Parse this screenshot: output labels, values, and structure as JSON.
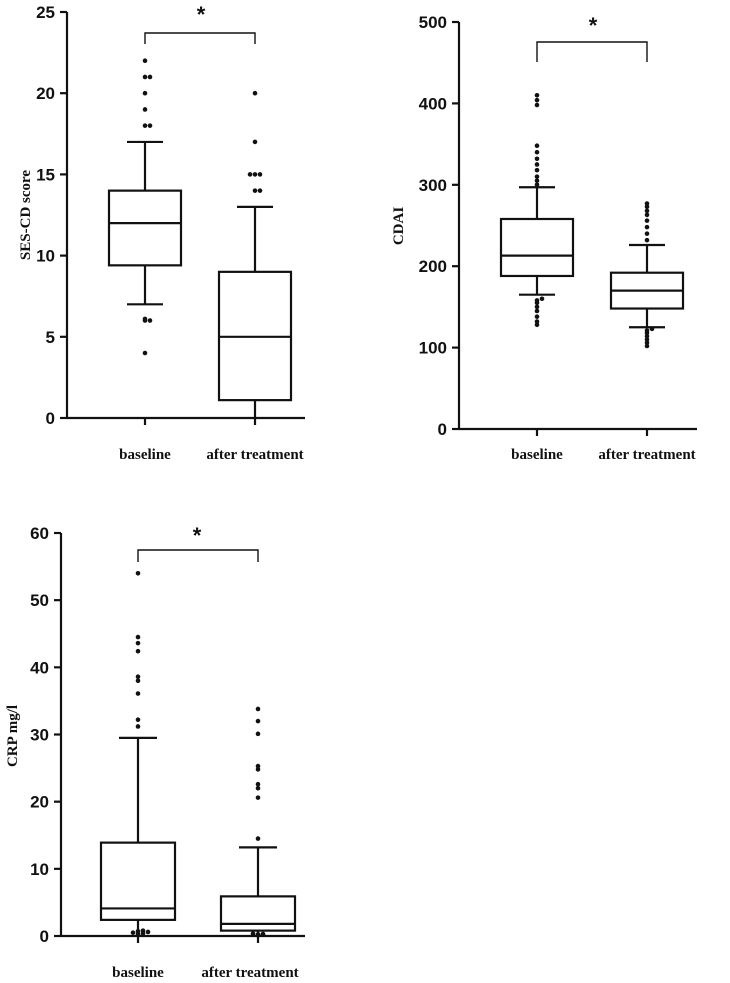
{
  "chart_data": [
    {
      "type": "box",
      "ylabel": "SES-CD score",
      "ylim": [
        0,
        25
      ],
      "yticks": [
        0,
        5,
        10,
        15,
        20,
        25
      ],
      "categories": [
        "baseline",
        "after treatment"
      ],
      "boxes": [
        {
          "name": "baseline",
          "whisker_low": 7,
          "q1": 9.4,
          "median": 12,
          "q3": 14,
          "whisker_high": 17,
          "outliers": [
            4,
            6,
            6,
            6.1,
            18,
            18,
            19,
            20,
            21,
            21,
            22
          ]
        },
        {
          "name": "after treatment",
          "whisker_low": 0,
          "q1": 1.1,
          "median": 5,
          "q3": 9,
          "whisker_high": 13,
          "outliers": [
            14,
            14,
            15,
            15,
            15,
            17,
            20
          ]
        }
      ],
      "significance": {
        "label": "*",
        "between": [
          "baseline",
          "after treatment"
        ]
      }
    },
    {
      "type": "box",
      "ylabel": "CDAI",
      "ylim": [
        0,
        500
      ],
      "yticks": [
        0,
        100,
        200,
        300,
        400,
        500
      ],
      "categories": [
        "baseline",
        "after treatment"
      ],
      "boxes": [
        {
          "name": "baseline",
          "whisker_low": 165,
          "q1": 188,
          "median": 213,
          "q3": 258,
          "whisker_high": 297,
          "outliers": [
            128,
            132,
            138,
            145,
            150,
            155,
            158,
            160,
            300,
            305,
            310,
            318,
            325,
            332,
            340,
            348,
            398,
            404,
            410
          ]
        },
        {
          "name": "after treatment",
          "whisker_low": 125,
          "q1": 148,
          "median": 170,
          "q3": 192,
          "whisker_high": 226,
          "outliers": [
            102,
            106,
            110,
            114,
            118,
            121,
            123,
            232,
            240,
            248,
            256,
            263,
            268,
            273,
            277
          ]
        }
      ],
      "significance": {
        "label": "*",
        "between": [
          "baseline",
          "after treatment"
        ]
      }
    },
    {
      "type": "box",
      "ylabel": "CRP mg/l",
      "ylim": [
        0,
        60
      ],
      "yticks": [
        0,
        10,
        20,
        30,
        40,
        50,
        60
      ],
      "categories": [
        "baseline",
        "after treatment"
      ],
      "boxes": [
        {
          "name": "baseline",
          "whisker_low": 0,
          "q1": 2.4,
          "median": 4.1,
          "q3": 13.9,
          "whisker_high": 29.5,
          "outliers": [
            0.3,
            0.4,
            0.5,
            0.6,
            0.7,
            0.8,
            31.2,
            32.2,
            36.1,
            38.0,
            38.6,
            42.4,
            43.6,
            44.5,
            54.0
          ]
        },
        {
          "name": "after treatment",
          "whisker_low": 0,
          "q1": 0.8,
          "median": 1.8,
          "q3": 5.9,
          "whisker_high": 13.2,
          "outliers": [
            0.1,
            0.2,
            0.25,
            0.3,
            0.35,
            14.5,
            20.6,
            22.0,
            22.6,
            24.8,
            25.3,
            30.1,
            32.0,
            33.8
          ]
        }
      ],
      "significance": {
        "label": "*",
        "between": [
          "baseline",
          "after treatment"
        ]
      }
    }
  ]
}
